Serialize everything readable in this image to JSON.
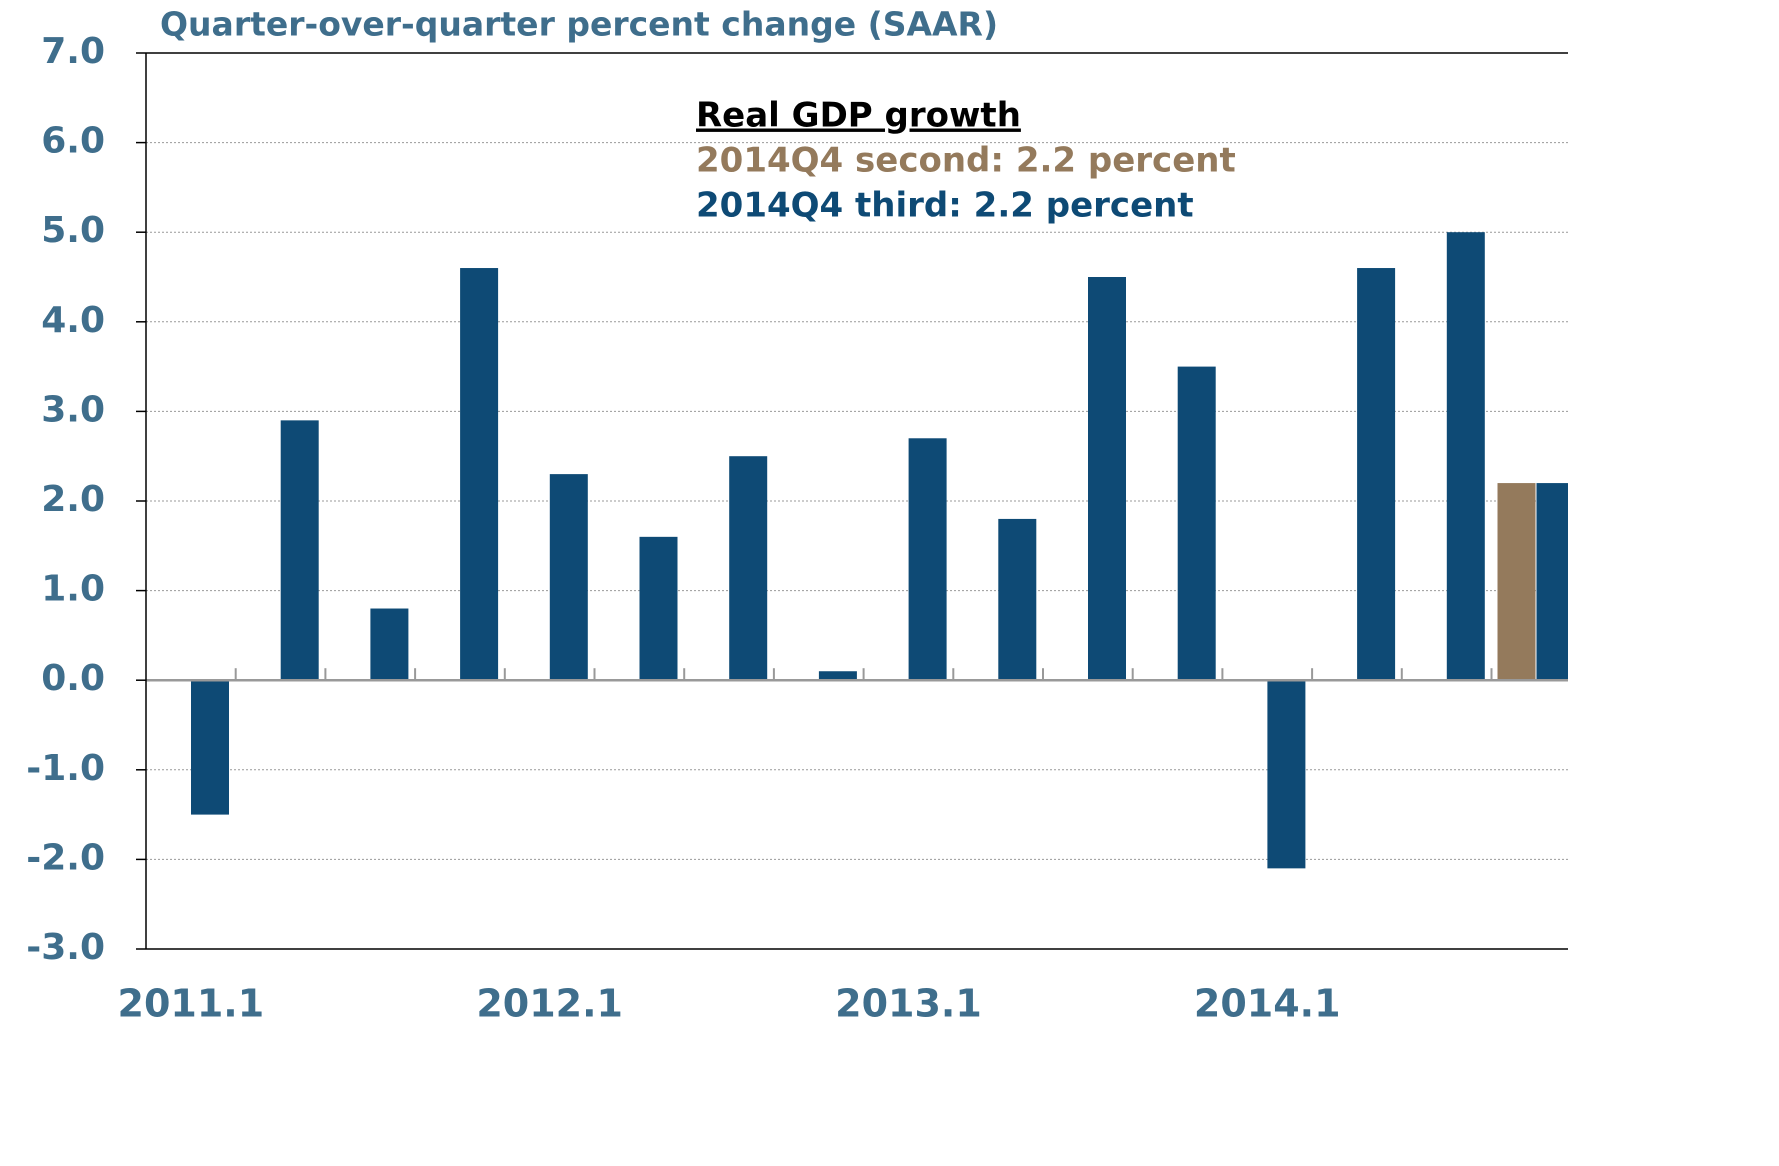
{
  "chart_data": {
    "type": "bar",
    "title": "Quarter-over-quarter percent change (SAAR)",
    "annotation": {
      "title": "Real GDP growth",
      "lines": [
        {
          "text": "2014Q4 second: 2.2 percent",
          "color": "#947a5c"
        },
        {
          "text": "2014Q4 third: 2.2 percent",
          "color": "#0e4a75"
        }
      ]
    },
    "categories": [
      "2011.1",
      null,
      null,
      null,
      "2012.1",
      null,
      null,
      null,
      "2013.1",
      null,
      null,
      null,
      "2014.1",
      null,
      null,
      null
    ],
    "series": [
      {
        "color": "#947a5c",
        "values": [
          null,
          null,
          null,
          null,
          null,
          null,
          null,
          null,
          null,
          null,
          null,
          null,
          null,
          null,
          null,
          2.2
        ]
      },
      {
        "color": "#0e4a75",
        "values": [
          -1.5,
          2.9,
          0.8,
          4.6,
          2.3,
          1.6,
          2.5,
          0.1,
          2.7,
          1.8,
          4.5,
          3.5,
          -2.1,
          4.6,
          5.0,
          2.2
        ]
      }
    ],
    "ylim": [
      -3,
      7
    ],
    "yticks": [
      {
        "value": 7,
        "label": "7.0"
      },
      {
        "value": 6,
        "label": "6.0"
      },
      {
        "value": 5,
        "label": "5.0"
      },
      {
        "value": 4,
        "label": "4.0"
      },
      {
        "value": 3,
        "label": "3.0"
      },
      {
        "value": 2,
        "label": "2.0"
      },
      {
        "value": 1,
        "label": "1.0"
      },
      {
        "value": 0,
        "label": "0.0"
      },
      {
        "value": -1,
        "label": "-1.0"
      },
      {
        "value": -2,
        "label": "-2.0"
      },
      {
        "value": -3,
        "label": "-3.0"
      }
    ],
    "grid": true
  }
}
